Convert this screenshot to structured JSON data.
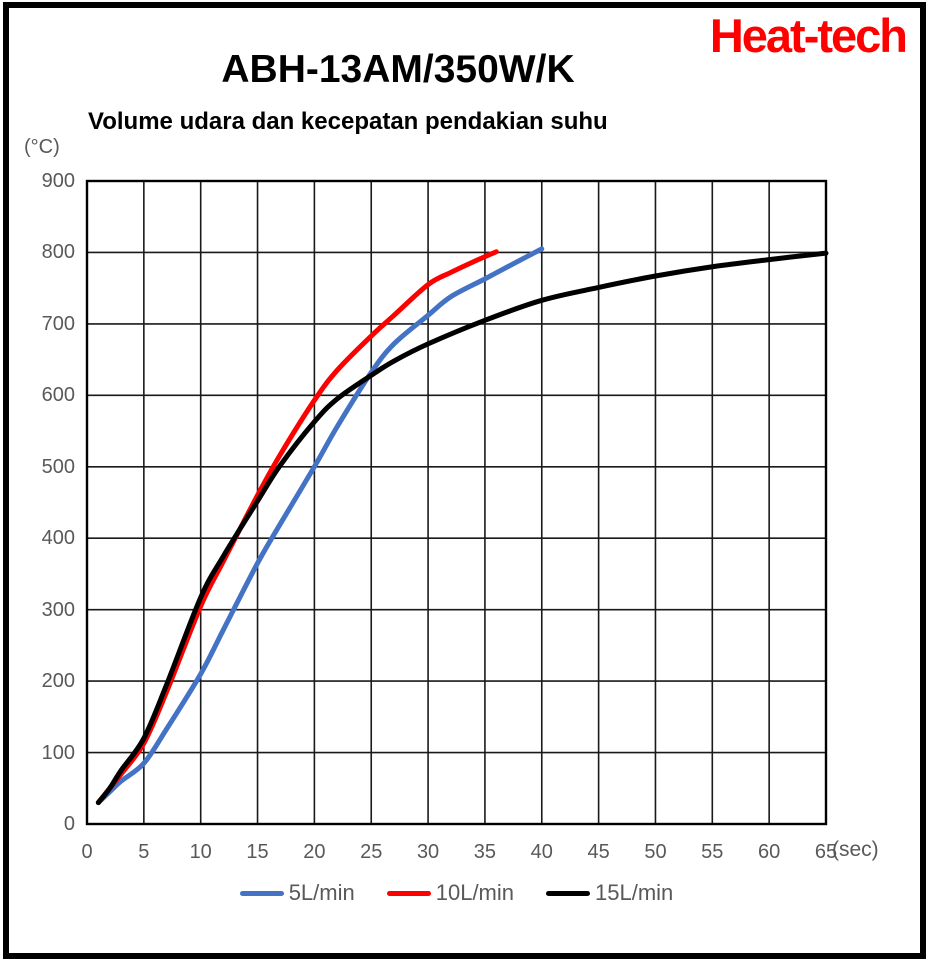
{
  "brand": {
    "logo": "Heat-tech",
    "color": "#FF0000"
  },
  "title": "ABH-13AM/350W/K",
  "subtitle": "Volume udara dan kecepatan pendakian suhu",
  "chart_data": {
    "type": "line",
    "title": "ABH-13AM/350W/K",
    "subtitle": "Volume udara dan kecepatan pendakian suhu",
    "xlabel": "(sec)",
    "ylabel": "(°C)",
    "xlim": [
      0,
      65
    ],
    "ylim": [
      0,
      900
    ],
    "x_ticks": [
      0,
      5,
      10,
      15,
      20,
      25,
      30,
      35,
      40,
      45,
      50,
      55,
      60,
      65
    ],
    "y_ticks": [
      0,
      100,
      200,
      300,
      400,
      500,
      600,
      700,
      800,
      900
    ],
    "grid": true,
    "grid_color": "#1a1a1a",
    "legend_position": "bottom",
    "series": [
      {
        "name": "5L/min",
        "color": "#4472C4",
        "points": [
          [
            1,
            30
          ],
          [
            2,
            45
          ],
          [
            3,
            60
          ],
          [
            5,
            85
          ],
          [
            7,
            133
          ],
          [
            10,
            210
          ],
          [
            12,
            272
          ],
          [
            15,
            365
          ],
          [
            17,
            420
          ],
          [
            20,
            500
          ],
          [
            22,
            556
          ],
          [
            25,
            632
          ],
          [
            27,
            672
          ],
          [
            30,
            712
          ],
          [
            32,
            738
          ],
          [
            35,
            763
          ],
          [
            37,
            780
          ],
          [
            40,
            805
          ]
        ]
      },
      {
        "name": "10L/min",
        "color": "#FF0000",
        "points": [
          [
            1,
            30
          ],
          [
            2,
            50
          ],
          [
            3,
            70
          ],
          [
            5,
            113
          ],
          [
            7,
            185
          ],
          [
            10,
            305
          ],
          [
            12,
            368
          ],
          [
            15,
            460
          ],
          [
            17,
            517
          ],
          [
            20,
            593
          ],
          [
            22,
            635
          ],
          [
            25,
            683
          ],
          [
            27,
            712
          ],
          [
            30,
            755
          ],
          [
            32,
            772
          ],
          [
            34,
            787
          ],
          [
            36,
            801
          ]
        ]
      },
      {
        "name": "15L/min",
        "color": "#000000",
        "points": [
          [
            1,
            30
          ],
          [
            2,
            50
          ],
          [
            3,
            75
          ],
          [
            5,
            120
          ],
          [
            7,
            195
          ],
          [
            10,
            317
          ],
          [
            12,
            375
          ],
          [
            15,
            452
          ],
          [
            17,
            502
          ],
          [
            20,
            563
          ],
          [
            22,
            595
          ],
          [
            25,
            628
          ],
          [
            27,
            648
          ],
          [
            30,
            672
          ],
          [
            35,
            705
          ],
          [
            40,
            733
          ],
          [
            45,
            751
          ],
          [
            50,
            767
          ],
          [
            55,
            780
          ],
          [
            60,
            790
          ],
          [
            65,
            799
          ]
        ]
      }
    ]
  }
}
